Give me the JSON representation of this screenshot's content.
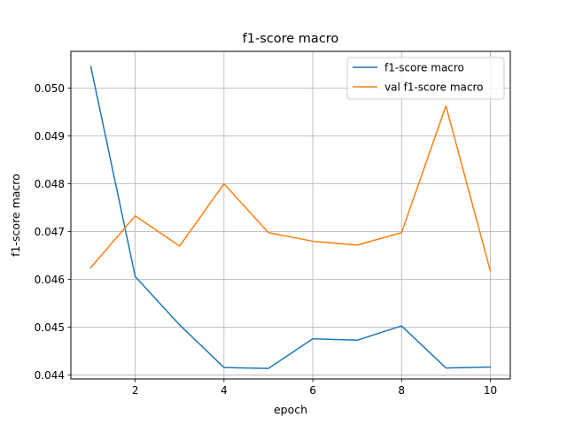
{
  "chart_data": {
    "type": "line",
    "title": "f1-score macro",
    "xlabel": "epoch",
    "ylabel": "f1-score macro",
    "x": [
      1,
      2,
      3,
      4,
      5,
      6,
      7,
      8,
      9,
      10
    ],
    "series": [
      {
        "name": "f1-score macro",
        "color": "#1f77b4",
        "values": [
          0.05045,
          0.04606,
          0.04505,
          0.04416,
          0.04414,
          0.04476,
          0.04473,
          0.04503,
          0.04415,
          0.04417
        ]
      },
      {
        "name": "val f1-score macro",
        "color": "#ff7f0e",
        "values": [
          0.04625,
          0.04733,
          0.0467,
          0.048,
          0.04698,
          0.0468,
          0.04672,
          0.04698,
          0.04963,
          0.04618
        ]
      }
    ],
    "xlim": [
      0.55,
      10.45
    ],
    "ylim": [
      0.04392,
      0.05077
    ],
    "xticks": [
      2,
      4,
      6,
      8,
      10
    ],
    "xtick_labels": [
      "2",
      "4",
      "6",
      "8",
      "10"
    ],
    "yticks": [
      0.044,
      0.045,
      0.046,
      0.047,
      0.048,
      0.049,
      0.05
    ],
    "ytick_labels": [
      "0.044",
      "0.045",
      "0.046",
      "0.047",
      "0.048",
      "0.049",
      "0.050"
    ],
    "grid": true,
    "legend": "upper right"
  }
}
